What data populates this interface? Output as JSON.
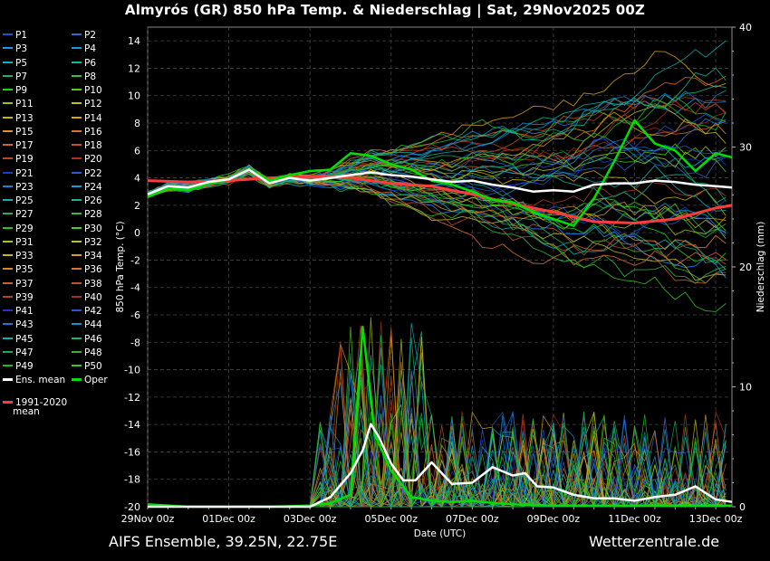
{
  "title": "Almyrós  (GR)  850 hPa Temp. & Niederschlag | Sat, 29Nov2025 00Z",
  "footer": {
    "model": "AIFS Ensemble, 39.25N, 22.75E",
    "source": "Wetterzentrale.de"
  },
  "colors": {
    "background": "#000000",
    "ens_mean": "#ffffff",
    "oper": "#00e000",
    "clim_mean": "#ff3c3c",
    "grid": "#444444"
  },
  "legend": {
    "members": [
      "P1",
      "P2",
      "P3",
      "P4",
      "P5",
      "P6",
      "P7",
      "P8",
      "P9",
      "P10",
      "P11",
      "P12",
      "P13",
      "P14",
      "P15",
      "P16",
      "P17",
      "P18",
      "P19",
      "P20",
      "P21",
      "P22",
      "P23",
      "P24",
      "P25",
      "P26",
      "P27",
      "P28",
      "P29",
      "P30",
      "P31",
      "P32",
      "P33",
      "P34",
      "P35",
      "P36",
      "P37",
      "P38",
      "P39",
      "P40",
      "P41",
      "P42",
      "P43",
      "P44",
      "P45",
      "P46",
      "P47",
      "P48",
      "P49",
      "P50"
    ],
    "member_colors": [
      "#2050e0",
      "#2a6ad8",
      "#1e90ff",
      "#00a0e0",
      "#00b8c8",
      "#00c0a0",
      "#20b070",
      "#30c040",
      "#20d020",
      "#50d010",
      "#a0c020",
      "#c0c020",
      "#d0b010",
      "#e0a010",
      "#e09020",
      "#e07020",
      "#d86020",
      "#c85020",
      "#c04020",
      "#b03018",
      "#1040d0",
      "#2060d0",
      "#1880e0",
      "#10a0d0",
      "#10b0b0",
      "#10b890",
      "#20b060",
      "#30c030",
      "#20c820",
      "#40d020",
      "#a0c820",
      "#c0c030",
      "#d0b020",
      "#d8a020",
      "#e08820",
      "#e07030",
      "#d06030",
      "#c05030",
      "#b04028",
      "#a03020",
      "#1838c8",
      "#2458d0",
      "#1878d8",
      "#0898d0",
      "#08b0b0",
      "#08b888",
      "#18a858",
      "#28b828",
      "#18c018",
      "#38c818"
    ],
    "ens_mean_label": "Ens. mean",
    "oper_label": "Oper",
    "clim_label": "1991-2020\nmean"
  },
  "chart_data": {
    "type": "line",
    "xlabel": "Date (UTC)",
    "ylabel_left": "850 hPa Temp. (°C)",
    "ylabel_right": "Niederschlag (mm)",
    "x_ticks": [
      "29Nov 00z",
      "01Dec 00z",
      "03Dec 00z",
      "05Dec 00z",
      "07Dec 00z",
      "09Dec 00z",
      "11Dec 00z",
      "13Dec 00z"
    ],
    "x_range_days": [
      0,
      14.4
    ],
    "ylim_left": [
      -20,
      15
    ],
    "ylim_right": [
      0,
      40
    ],
    "y_ticks_left": [
      -20,
      -18,
      -16,
      -14,
      -12,
      -10,
      -8,
      -6,
      -4,
      -2,
      0,
      2,
      4,
      6,
      8,
      10,
      12,
      14
    ],
    "y_ticks_right": [
      0,
      10,
      20,
      30,
      40
    ],
    "grid": true,
    "series_temp": [
      {
        "name": "Ens. mean",
        "x": [
          0,
          0.5,
          1,
          1.5,
          2,
          2.5,
          3,
          3.5,
          4,
          4.5,
          5,
          5.5,
          6,
          6.5,
          7,
          7.5,
          8,
          8.5,
          9,
          9.5,
          10,
          10.5,
          11,
          11.5,
          12,
          12.5,
          13,
          13.5,
          14,
          14.4
        ],
        "y": [
          2.8,
          3.4,
          3.3,
          3.7,
          3.9,
          4.6,
          3.6,
          4.0,
          3.8,
          4.0,
          4.2,
          4.4,
          4.2,
          4.1,
          3.9,
          3.7,
          3.8,
          3.5,
          3.3,
          3.0,
          3.1,
          3.0,
          3.5,
          3.6,
          3.6,
          3.8,
          3.7,
          3.5,
          3.4,
          3.3
        ]
      },
      {
        "name": "Oper",
        "x": [
          0,
          0.5,
          1,
          1.5,
          2,
          2.5,
          3,
          3.5,
          4,
          4.5,
          5,
          5.5,
          6,
          6.5,
          7,
          7.5,
          8,
          8.5,
          9,
          9.5,
          10,
          10.5,
          11,
          11.5,
          12,
          12.5,
          13,
          13.5,
          14,
          14.4
        ],
        "y": [
          2.6,
          3.2,
          3.1,
          3.6,
          3.9,
          4.6,
          3.8,
          4.2,
          4.5,
          4.6,
          5.8,
          5.6,
          5.0,
          4.6,
          3.8,
          3.5,
          3.0,
          2.4,
          2.2,
          1.5,
          1.0,
          0.5,
          2.5,
          5.2,
          8.2,
          6.5,
          6.0,
          4.5,
          5.8,
          5.5
        ]
      },
      {
        "name": "1991-2020 mean",
        "x": [
          0,
          1,
          2,
          3,
          4,
          5,
          6,
          7,
          8,
          9,
          10,
          11,
          12,
          13,
          14,
          14.4
        ],
        "y": [
          3.8,
          3.7,
          3.8,
          4.0,
          4.1,
          4.0,
          3.6,
          3.4,
          2.8,
          2.1,
          1.5,
          0.8,
          0.7,
          1.0,
          1.8,
          2.0
        ]
      }
    ],
    "series_precip": [
      {
        "name": "Ens. mean",
        "x": [
          0,
          1,
          2,
          3,
          4,
          4.5,
          5,
          5.3,
          5.5,
          5.7,
          6,
          6.3,
          6.6,
          7,
          7.5,
          8,
          8.5,
          9,
          9.3,
          9.6,
          10,
          10.5,
          11,
          11.5,
          12,
          12.5,
          13,
          13.5,
          14,
          14.4
        ],
        "y": [
          0,
          0,
          0,
          0,
          0,
          0.8,
          2.8,
          4.7,
          6.9,
          5.8,
          3.6,
          2.2,
          2.2,
          3.7,
          1.9,
          2.0,
          3.3,
          2.6,
          2.8,
          1.7,
          1.6,
          1.0,
          0.7,
          0.7,
          0.5,
          0.8,
          1.0,
          1.7,
          0.6,
          0.4
        ]
      },
      {
        "name": "Oper",
        "x": [
          0,
          1,
          2,
          3,
          4,
          4.5,
          5,
          5.3,
          5.6,
          6,
          6.5,
          7,
          7.5,
          8,
          8.5,
          9,
          10,
          11,
          12,
          13,
          14,
          14.4
        ],
        "y": [
          0.2,
          0,
          0,
          0,
          0.1,
          0.3,
          1.0,
          15.0,
          6.0,
          3.0,
          0.8,
          0.5,
          0.4,
          0.5,
          0.3,
          0.2,
          0.1,
          0.1,
          0.1,
          0.1,
          0.1,
          0.1
        ]
      }
    ]
  }
}
